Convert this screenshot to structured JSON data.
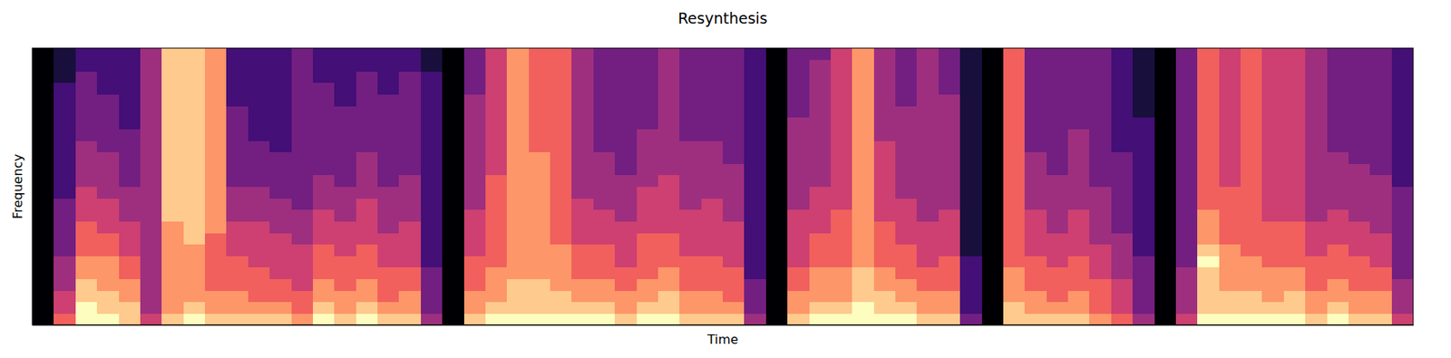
{
  "chart_data": {
    "type": "heatmap",
    "title": "Resynthesis",
    "x_label": "Time",
    "y_label": "Frequency",
    "tick_labels": false,
    "xlim": [
      0,
      64
    ],
    "ylim": [
      0,
      24
    ],
    "zlim": [
      0,
      9
    ],
    "values": [
      [
        0,
        0,
        0,
        0,
        0,
        0,
        0,
        0,
        0,
        0,
        0,
        0,
        0,
        0,
        0,
        0,
        0,
        0,
        0,
        0,
        0,
        0,
        0,
        0
      ],
      [
        6,
        5,
        5,
        4,
        4,
        4,
        3,
        3,
        3,
        3,
        3,
        2,
        2,
        2,
        2,
        2,
        2,
        2,
        2,
        2,
        2,
        1,
        1,
        1
      ],
      [
        9,
        9,
        8,
        8,
        7,
        7,
        6,
        6,
        6,
        5,
        5,
        5,
        4,
        4,
        4,
        4,
        3,
        3,
        3,
        3,
        3,
        3,
        2,
        2
      ],
      [
        9,
        8,
        8,
        7,
        7,
        7,
        6,
        6,
        5,
        5,
        5,
        4,
        4,
        4,
        4,
        3,
        3,
        3,
        3,
        3,
        2,
        2,
        2,
        2
      ],
      [
        8,
        8,
        7,
        7,
        6,
        6,
        5,
        5,
        5,
        4,
        4,
        4,
        3,
        3,
        3,
        3,
        3,
        2,
        2,
        2,
        2,
        2,
        2,
        2
      ],
      [
        5,
        4,
        4,
        4,
        4,
        4,
        4,
        4,
        4,
        4,
        4,
        4,
        4,
        4,
        4,
        4,
        4,
        4,
        4,
        4,
        4,
        4,
        4,
        4
      ],
      [
        8,
        7,
        7,
        7,
        7,
        7,
        7,
        7,
        7,
        8,
        8,
        8,
        8,
        8,
        8,
        8,
        8,
        8,
        8,
        8,
        8,
        8,
        8,
        8
      ],
      [
        9,
        8,
        7,
        7,
        7,
        7,
        7,
        8,
        8,
        8,
        8,
        8,
        8,
        8,
        8,
        8,
        8,
        8,
        8,
        8,
        8,
        8,
        8,
        8
      ],
      [
        8,
        7,
        7,
        6,
        6,
        6,
        6,
        6,
        7,
        7,
        7,
        7,
        7,
        7,
        7,
        7,
        7,
        7,
        7,
        7,
        7,
        7,
        7,
        7
      ],
      [
        8,
        7,
        7,
        6,
        6,
        6,
        5,
        5,
        5,
        4,
        4,
        4,
        3,
        3,
        3,
        3,
        3,
        3,
        3,
        2,
        2,
        2,
        2,
        2
      ],
      [
        8,
        7,
        6,
        6,
        6,
        5,
        5,
        5,
        5,
        4,
        4,
        4,
        3,
        3,
        3,
        3,
        2,
        2,
        2,
        2,
        2,
        2,
        2,
        2
      ],
      [
        8,
        7,
        6,
        6,
        5,
        5,
        5,
        5,
        4,
        4,
        4,
        3,
        3,
        3,
        3,
        2,
        2,
        2,
        2,
        2,
        2,
        2,
        2,
        2
      ],
      [
        7,
        6,
        6,
        5,
        5,
        5,
        5,
        4,
        4,
        4,
        3,
        3,
        3,
        3,
        3,
        3,
        3,
        3,
        3,
        3,
        3,
        3,
        3,
        3
      ],
      [
        9,
        8,
        7,
        7,
        6,
        6,
        6,
        5,
        5,
        5,
        4,
        4,
        4,
        3,
        3,
        3,
        3,
        3,
        3,
        3,
        3,
        2,
        2,
        2
      ],
      [
        8,
        7,
        7,
        6,
        6,
        6,
        5,
        5,
        5,
        4,
        4,
        4,
        3,
        3,
        3,
        3,
        3,
        3,
        3,
        2,
        2,
        2,
        2,
        2
      ],
      [
        9,
        8,
        7,
        7,
        6,
        6,
        6,
        5,
        5,
        5,
        5,
        4,
        4,
        4,
        4,
        3,
        3,
        3,
        3,
        3,
        3,
        3,
        2,
        2
      ],
      [
        8,
        7,
        6,
        6,
        6,
        5,
        5,
        5,
        4,
        4,
        4,
        4,
        3,
        3,
        3,
        3,
        3,
        3,
        3,
        3,
        2,
        2,
        2,
        2
      ],
      [
        8,
        7,
        7,
        6,
        6,
        5,
        5,
        5,
        5,
        4,
        4,
        4,
        4,
        3,
        3,
        3,
        3,
        3,
        3,
        3,
        3,
        3,
        2,
        2
      ],
      [
        4,
        3,
        3,
        3,
        3,
        2,
        2,
        2,
        2,
        2,
        2,
        2,
        2,
        2,
        2,
        2,
        2,
        2,
        2,
        2,
        2,
        2,
        1,
        1
      ],
      [
        0,
        0,
        0,
        0,
        0,
        0,
        0,
        0,
        0,
        0,
        0,
        0,
        0,
        0,
        0,
        0,
        0,
        0,
        0,
        0,
        0,
        0,
        0,
        0
      ],
      [
        8,
        7,
        7,
        6,
        6,
        6,
        5,
        5,
        5,
        5,
        4,
        4,
        4,
        4,
        4,
        4,
        4,
        4,
        4,
        4,
        3,
        3,
        3,
        3
      ],
      [
        9,
        8,
        7,
        7,
        7,
        6,
        6,
        6,
        6,
        6,
        6,
        6,
        6,
        5,
        5,
        5,
        5,
        5,
        5,
        5,
        5,
        5,
        5,
        5
      ],
      [
        9,
        8,
        8,
        8,
        7,
        7,
        7,
        7,
        7,
        7,
        7,
        7,
        7,
        7,
        7,
        7,
        7,
        7,
        7,
        7,
        7,
        7,
        7,
        7
      ],
      [
        9,
        8,
        8,
        8,
        7,
        7,
        7,
        7,
        7,
        7,
        7,
        7,
        7,
        7,
        7,
        6,
        6,
        6,
        6,
        6,
        6,
        6,
        6,
        6
      ],
      [
        9,
        8,
        8,
        7,
        7,
        7,
        7,
        6,
        6,
        6,
        6,
        6,
        6,
        6,
        6,
        6,
        6,
        6,
        6,
        6,
        6,
        6,
        6,
        6
      ],
      [
        9,
        8,
        7,
        7,
        6,
        6,
        6,
        5,
        5,
        5,
        5,
        4,
        4,
        4,
        4,
        4,
        4,
        4,
        4,
        4,
        4,
        4,
        4,
        4
      ],
      [
        9,
        8,
        7,
        7,
        6,
        6,
        6,
        5,
        5,
        5,
        4,
        4,
        4,
        4,
        4,
        3,
        3,
        3,
        3,
        3,
        3,
        3,
        3,
        3
      ],
      [
        8,
        7,
        7,
        6,
        6,
        5,
        5,
        5,
        5,
        4,
        4,
        4,
        4,
        3,
        3,
        3,
        3,
        3,
        3,
        3,
        3,
        3,
        3,
        3
      ],
      [
        9,
        8,
        7,
        7,
        6,
        6,
        6,
        6,
        5,
        5,
        5,
        5,
        4,
        4,
        4,
        4,
        4,
        3,
        3,
        3,
        3,
        3,
        3,
        3
      ],
      [
        9,
        8,
        8,
        7,
        7,
        6,
        6,
        6,
        5,
        5,
        5,
        5,
        5,
        4,
        4,
        4,
        4,
        4,
        4,
        4,
        4,
        4,
        4,
        4
      ],
      [
        8,
        7,
        7,
        6,
        6,
        6,
        5,
        5,
        5,
        5,
        4,
        4,
        4,
        4,
        4,
        4,
        3,
        3,
        3,
        3,
        3,
        3,
        3,
        3
      ],
      [
        8,
        7,
        7,
        6,
        6,
        6,
        5,
        5,
        5,
        5,
        5,
        4,
        4,
        4,
        4,
        4,
        3,
        3,
        3,
        3,
        3,
        3,
        3,
        3
      ],
      [
        8,
        7,
        6,
        6,
        6,
        5,
        5,
        5,
        5,
        4,
        4,
        4,
        4,
        4,
        3,
        3,
        3,
        3,
        3,
        3,
        3,
        3,
        3,
        3
      ],
      [
        4,
        3,
        3,
        3,
        2,
        2,
        2,
        2,
        2,
        2,
        2,
        2,
        2,
        2,
        2,
        2,
        2,
        2,
        2,
        2,
        2,
        2,
        2,
        2
      ],
      [
        0,
        0,
        0,
        0,
        0,
        0,
        0,
        0,
        0,
        0,
        0,
        0,
        0,
        0,
        0,
        0,
        0,
        0,
        0,
        0,
        0,
        0,
        0,
        0
      ],
      [
        8,
        7,
        7,
        6,
        6,
        5,
        5,
        5,
        5,
        5,
        4,
        4,
        4,
        4,
        4,
        4,
        4,
        4,
        3,
        3,
        3,
        3,
        3,
        3
      ],
      [
        9,
        8,
        7,
        7,
        7,
        6,
        6,
        6,
        5,
        5,
        5,
        5,
        4,
        4,
        4,
        4,
        4,
        4,
        4,
        4,
        4,
        4,
        4,
        3
      ],
      [
        9,
        8,
        7,
        7,
        7,
        6,
        6,
        6,
        6,
        6,
        5,
        5,
        5,
        5,
        5,
        5,
        5,
        5,
        5,
        5,
        5,
        5,
        5,
        5
      ],
      [
        9,
        9,
        8,
        8,
        8,
        7,
        7,
        7,
        7,
        7,
        7,
        7,
        7,
        7,
        7,
        7,
        7,
        7,
        7,
        7,
        7,
        7,
        7,
        7
      ],
      [
        9,
        8,
        8,
        7,
        7,
        6,
        6,
        6,
        6,
        5,
        5,
        5,
        5,
        5,
        5,
        5,
        4,
        4,
        4,
        4,
        4,
        4,
        4,
        4
      ],
      [
        9,
        8,
        7,
        7,
        6,
        6,
        6,
        5,
        5,
        5,
        5,
        4,
        4,
        4,
        4,
        4,
        4,
        4,
        4,
        3,
        3,
        3,
        3,
        3
      ],
      [
        8,
        7,
        7,
        6,
        6,
        5,
        5,
        5,
        5,
        4,
        4,
        4,
        4,
        4,
        4,
        4,
        4,
        4,
        4,
        4,
        4,
        4,
        4,
        4
      ],
      [
        8,
        7,
        7,
        6,
        6,
        6,
        5,
        5,
        5,
        5,
        4,
        4,
        4,
        4,
        4,
        4,
        4,
        4,
        4,
        4,
        3,
        3,
        3,
        3
      ],
      [
        3,
        2,
        2,
        2,
        2,
        2,
        1,
        1,
        1,
        1,
        1,
        1,
        1,
        1,
        1,
        1,
        1,
        1,
        1,
        1,
        1,
        1,
        1,
        1
      ],
      [
        0,
        0,
        0,
        0,
        0,
        0,
        0,
        0,
        0,
        0,
        0,
        0,
        0,
        0,
        0,
        0,
        0,
        0,
        0,
        0,
        0,
        0,
        0,
        0
      ],
      [
        8,
        8,
        7,
        7,
        7,
        6,
        6,
        6,
        6,
        6,
        6,
        6,
        6,
        6,
        6,
        6,
        6,
        6,
        6,
        6,
        6,
        6,
        6,
        6
      ],
      [
        8,
        7,
        7,
        6,
        6,
        6,
        5,
        5,
        5,
        5,
        4,
        4,
        4,
        4,
        4,
        3,
        3,
        3,
        3,
        3,
        3,
        3,
        3,
        3
      ],
      [
        8,
        7,
        6,
        6,
        6,
        5,
        5,
        5,
        4,
        4,
        4,
        4,
        4,
        3,
        3,
        3,
        3,
        3,
        3,
        3,
        3,
        3,
        3,
        3
      ],
      [
        8,
        7,
        7,
        6,
        6,
        6,
        5,
        5,
        5,
        5,
        4,
        4,
        4,
        4,
        4,
        4,
        4,
        3,
        3,
        3,
        3,
        3,
        3,
        3
      ],
      [
        7,
        6,
        6,
        6,
        5,
        5,
        5,
        4,
        4,
        4,
        4,
        4,
        3,
        3,
        3,
        3,
        3,
        3,
        3,
        3,
        3,
        3,
        3,
        3
      ],
      [
        6,
        5,
        5,
        5,
        4,
        4,
        4,
        4,
        3,
        3,
        3,
        3,
        3,
        3,
        3,
        2,
        2,
        2,
        2,
        2,
        2,
        2,
        2,
        2
      ],
      [
        4,
        3,
        3,
        3,
        3,
        3,
        2,
        2,
        2,
        2,
        2,
        2,
        2,
        2,
        2,
        2,
        2,
        2,
        1,
        1,
        1,
        1,
        1,
        1
      ],
      [
        0,
        0,
        0,
        0,
        0,
        0,
        0,
        0,
        0,
        0,
        0,
        0,
        0,
        0,
        0,
        0,
        0,
        0,
        0,
        0,
        0,
        0,
        0,
        0
      ],
      [
        5,
        4,
        4,
        4,
        4,
        3,
        3,
        3,
        3,
        3,
        3,
        3,
        3,
        3,
        3,
        3,
        3,
        3,
        3,
        3,
        3,
        3,
        3,
        3
      ],
      [
        9,
        8,
        8,
        8,
        8,
        9,
        8,
        7,
        7,
        7,
        6,
        6,
        6,
        6,
        6,
        6,
        6,
        6,
        6,
        6,
        6,
        6,
        6,
        6
      ],
      [
        9,
        8,
        8,
        7,
        7,
        7,
        7,
        6,
        6,
        6,
        6,
        6,
        5,
        5,
        5,
        5,
        5,
        5,
        5,
        5,
        5,
        5,
        5,
        5
      ],
      [
        9,
        8,
        8,
        7,
        7,
        7,
        6,
        6,
        6,
        6,
        6,
        6,
        6,
        6,
        6,
        6,
        6,
        6,
        6,
        6,
        6,
        6,
        6,
        6
      ],
      [
        9,
        8,
        7,
        7,
        7,
        6,
        6,
        6,
        6,
        5,
        5,
        5,
        5,
        5,
        5,
        5,
        5,
        5,
        5,
        5,
        5,
        5,
        5,
        5
      ],
      [
        9,
        8,
        8,
        7,
        7,
        6,
        6,
        6,
        6,
        5,
        5,
        5,
        5,
        5,
        5,
        5,
        5,
        5,
        5,
        5,
        5,
        5,
        5,
        5
      ],
      [
        8,
        7,
        7,
        6,
        6,
        6,
        5,
        5,
        5,
        4,
        4,
        4,
        4,
        4,
        4,
        4,
        4,
        4,
        4,
        4,
        4,
        4,
        4,
        4
      ],
      [
        9,
        8,
        7,
        7,
        6,
        6,
        6,
        5,
        5,
        5,
        4,
        4,
        4,
        4,
        4,
        3,
        3,
        3,
        3,
        3,
        3,
        3,
        3,
        3
      ],
      [
        8,
        7,
        7,
        6,
        6,
        6,
        5,
        5,
        5,
        4,
        4,
        4,
        4,
        4,
        3,
        3,
        3,
        3,
        3,
        3,
        3,
        3,
        3,
        3
      ],
      [
        8,
        7,
        7,
        6,
        6,
        5,
        5,
        5,
        4,
        4,
        4,
        4,
        4,
        3,
        3,
        3,
        3,
        3,
        3,
        3,
        3,
        3,
        3,
        3
      ],
      [
        5,
        4,
        4,
        4,
        3,
        3,
        3,
        3,
        3,
        3,
        3,
        3,
        2,
        2,
        2,
        2,
        2,
        2,
        2,
        2,
        2,
        2,
        2,
        2
      ]
    ]
  }
}
